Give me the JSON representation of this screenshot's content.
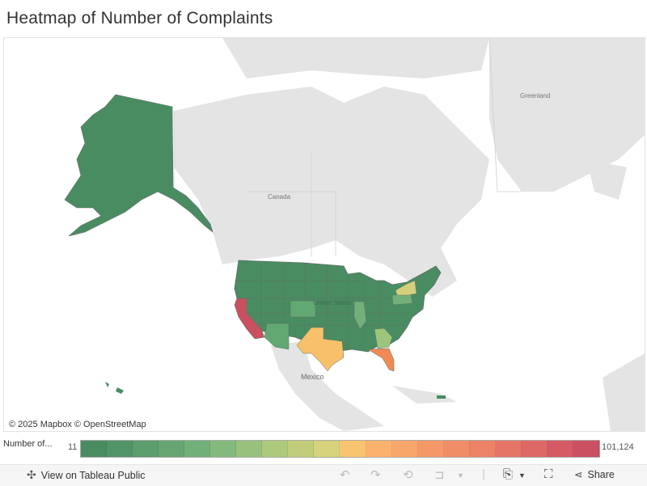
{
  "title": "Heatmap of Number of Complaints",
  "map": {
    "labels": {
      "greenland": "Greenland",
      "canada": "Canada",
      "united_states": "United States",
      "mexico": "Mexico"
    },
    "attribution": "© 2025 Mapbox  © OpenStreetMap",
    "colors": {
      "land": "#e4e4e4",
      "water": "#ffffff",
      "low": "#4a8c62",
      "california": "#c9505f",
      "texas": "#f8c069",
      "florida": "#f08a55",
      "new_york": "#d3cf7b",
      "georgia": "#9cc57b",
      "light_green": "#62a872"
    }
  },
  "legend": {
    "title": "Number of...",
    "min": "11",
    "max": "101,124",
    "colors": [
      "#4a8c62",
      "#519467",
      "#5b9d6d",
      "#67a673",
      "#72b07a",
      "#84b97d",
      "#98c27c",
      "#adc97b",
      "#c1cd7b",
      "#d6d27e",
      "#f9c46f",
      "#fab26c",
      "#f9a66a",
      "#f59868",
      "#f08d66",
      "#ec8266",
      "#e57566",
      "#de6866",
      "#d55a63",
      "#ca5062"
    ]
  },
  "toolbar": {
    "view_on_tableau": "View on Tableau Public",
    "share": "Share"
  }
}
